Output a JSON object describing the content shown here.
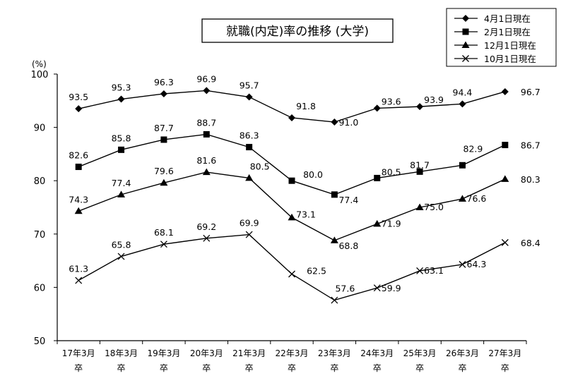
{
  "chart_data": {
    "type": "line",
    "title": "就職(内定)率の推移 (大学)",
    "ylabel": "(%)",
    "xlabel": "",
    "ylim": [
      50,
      100
    ],
    "yticks": [
      50,
      60,
      70,
      80,
      90,
      100
    ],
    "grid": false,
    "legend_position": "top-right",
    "categories": [
      [
        "17年3月",
        "卒"
      ],
      [
        "18年3月",
        "卒"
      ],
      [
        "19年3月",
        "卒"
      ],
      [
        "20年3月",
        "卒"
      ],
      [
        "21年3月",
        "卒"
      ],
      [
        "22年3月",
        "卒"
      ],
      [
        "23年3月",
        "卒"
      ],
      [
        "24年3月",
        "卒"
      ],
      [
        "25年3月",
        "卒"
      ],
      [
        "26年3月",
        "卒"
      ],
      [
        "27年3月",
        "卒"
      ]
    ],
    "series": [
      {
        "name": "4月1日現在",
        "marker": "diamond",
        "values": [
          93.5,
          95.3,
          96.3,
          96.9,
          95.7,
          91.8,
          91.0,
          93.6,
          93.9,
          94.4,
          96.7
        ]
      },
      {
        "name": "2月1日現在",
        "marker": "square",
        "values": [
          82.6,
          85.8,
          87.7,
          88.7,
          86.3,
          80.0,
          77.4,
          80.5,
          81.7,
          82.9,
          86.7
        ]
      },
      {
        "name": "12月1日現在",
        "marker": "triangle",
        "values": [
          74.3,
          77.4,
          79.6,
          81.6,
          80.5,
          73.1,
          68.8,
          71.9,
          75.0,
          76.6,
          80.3
        ]
      },
      {
        "name": "10月1日現在",
        "marker": "cross",
        "values": [
          61.3,
          65.8,
          68.1,
          69.2,
          69.9,
          62.5,
          57.6,
          59.9,
          63.1,
          64.3,
          68.4
        ]
      }
    ]
  }
}
